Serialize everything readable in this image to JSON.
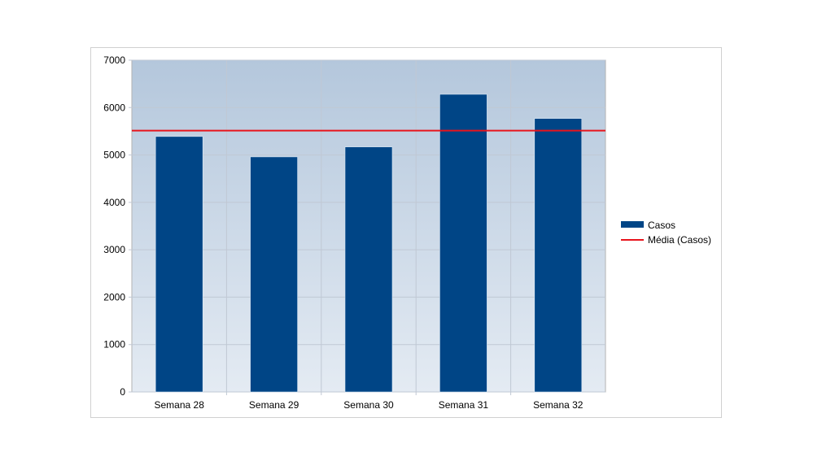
{
  "chart_data": {
    "type": "bar",
    "title": "",
    "xlabel": "",
    "ylabel": "",
    "categories": [
      "Semana 28",
      "Semana 29",
      "Semana 30",
      "Semana 31",
      "Semana 32"
    ],
    "series": [
      {
        "name": "Casos",
        "type": "bar",
        "color": "#004586",
        "values": [
          5390,
          4960,
          5170,
          6280,
          5770
        ]
      },
      {
        "name": "Média (Casos)",
        "type": "line",
        "color": "#e8141c",
        "value": 5514
      }
    ],
    "ylim": [
      0,
      7000
    ],
    "yticks": [
      0,
      1000,
      2000,
      3000,
      4000,
      5000,
      6000,
      7000
    ],
    "grid": true,
    "legend": "right",
    "background_gradient": [
      "#b4c7dc",
      "#e4ebf3"
    ]
  }
}
